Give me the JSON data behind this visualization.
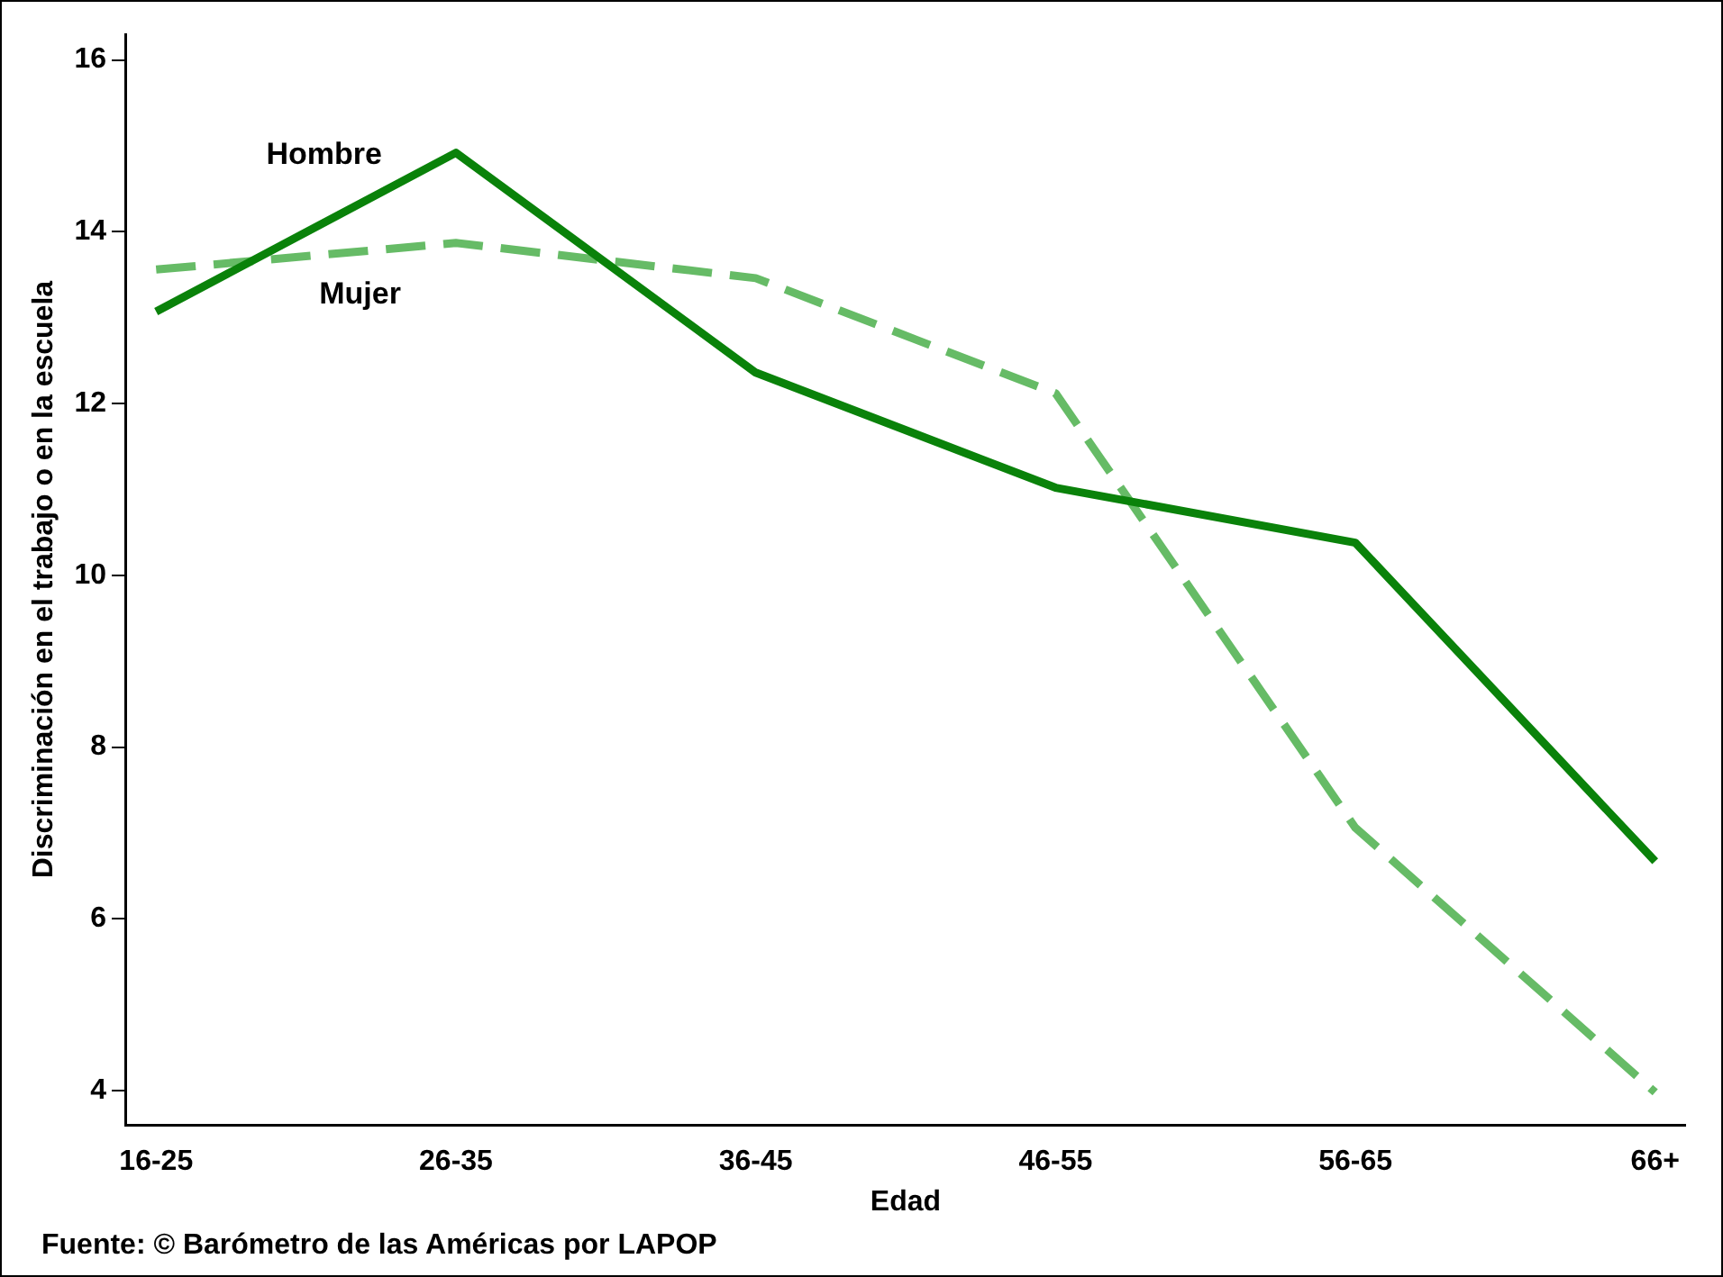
{
  "chart_data": {
    "type": "line",
    "xlabel": "Edad",
    "ylabel": "Discriminación en el trabajo o en la escuela",
    "categories": [
      "16-25",
      "26-35",
      "36-45",
      "46-55",
      "56-65",
      "66+"
    ],
    "series": [
      {
        "name": "Hombre",
        "color": "#0a820a",
        "values": [
          13.07,
          14.92,
          12.36,
          11.02,
          10.38,
          6.67
        ],
        "line_style": "solid"
      },
      {
        "name": "Mujer",
        "color": "#66bb66",
        "values": [
          13.56,
          13.87,
          13.46,
          12.12,
          7.06,
          3.98
        ],
        "line_style": "dashed"
      }
    ],
    "ylim": [
      3.6,
      16.3
    ],
    "yticks": [
      4,
      6,
      8,
      10,
      12,
      14,
      16
    ],
    "grid": false,
    "legend": false,
    "marker": "none",
    "annotations": [
      "Fuente: © Barómetro de las Américas por LAPOP"
    ]
  }
}
